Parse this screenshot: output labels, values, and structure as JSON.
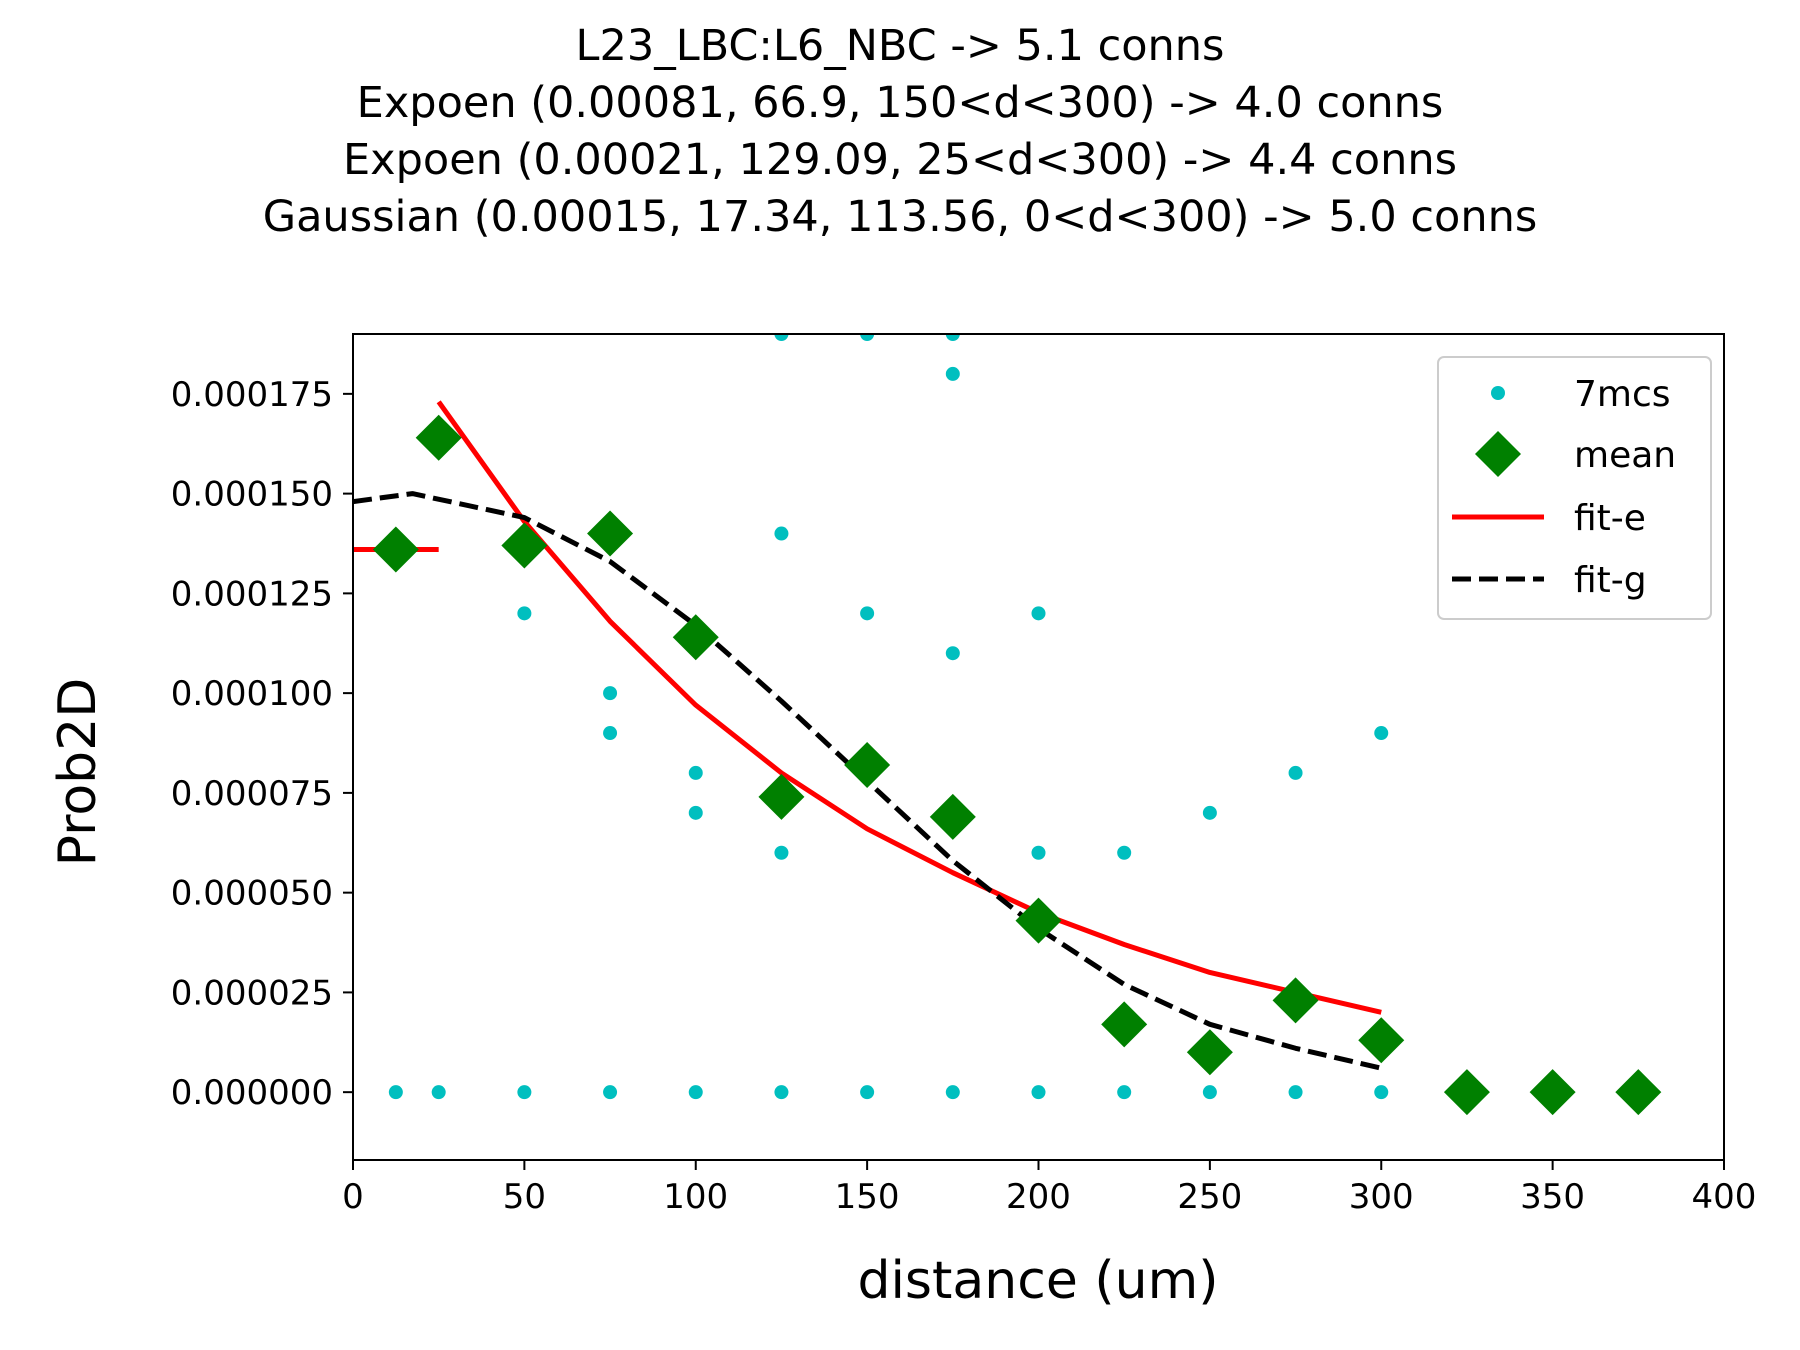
{
  "chart_data": {
    "type": "scatter",
    "title_lines": [
      "L23_LBC:L6_NBC -> 5.1 conns",
      "Expoen (0.00081, 66.9, 150<d<300) -> 4.0 conns",
      "Expoen (0.00021, 129.09, 25<d<300) -> 4.4 conns",
      "Gaussian (0.00015, 17.34, 113.56, 0<d<300) -> 5.0 conns"
    ],
    "xlabel": "distance (um)",
    "ylabel": "Prob2D",
    "xlim": [
      0,
      400
    ],
    "ylim": [
      -1.7e-05,
      0.00019
    ],
    "x_ticks": [
      0,
      50,
      100,
      150,
      200,
      250,
      300,
      350,
      400
    ],
    "x_tick_labels": [
      "0",
      "50",
      "100",
      "150",
      "200",
      "250",
      "300",
      "350",
      "400"
    ],
    "y_ticks": [
      0,
      2.5e-05,
      5e-05,
      7.5e-05,
      0.0001,
      0.000125,
      0.00015,
      0.000175
    ],
    "y_tick_labels": [
      "0.000000",
      "0.000025",
      "0.000050",
      "0.000075",
      "0.000100",
      "0.000125",
      "0.000150",
      "0.000175"
    ],
    "grid": false,
    "legend_position": "top-right",
    "legend": [
      "7mcs",
      "mean",
      "fit-e",
      "fit-g"
    ],
    "colors": {
      "samples": "#00bfbf",
      "mean": "#008000",
      "fit_e": "#ff0000",
      "fit_g": "#000000"
    },
    "series": [
      {
        "name": "7mcs",
        "kind": "points",
        "x": [
          12.5,
          25,
          50,
          50,
          75,
          75,
          75,
          100,
          100,
          100,
          125,
          125,
          125,
          125,
          150,
          150,
          150,
          175,
          175,
          175,
          175,
          200,
          200,
          200,
          225,
          225,
          250,
          250,
          275,
          275,
          300,
          300
        ],
        "y": [
          0,
          0,
          0,
          0.00012,
          0,
          0.0001,
          9e-05,
          0,
          8e-05,
          7e-05,
          0,
          6e-05,
          0.00014,
          0.00019,
          0,
          0.00012,
          0.00019,
          0,
          0.00011,
          0.00018,
          0.00019,
          0,
          6e-05,
          0.00012,
          0,
          6e-05,
          0,
          7e-05,
          0,
          8e-05,
          0,
          9e-05
        ]
      },
      {
        "name": "mean",
        "kind": "diamonds",
        "x": [
          12.5,
          25,
          50,
          75,
          100,
          125,
          150,
          175,
          200,
          225,
          250,
          275,
          300,
          325,
          350,
          375
        ],
        "y": [
          0.000136,
          0.000164,
          0.000137,
          0.00014,
          0.000114,
          7.4e-05,
          8.2e-05,
          6.9e-05,
          4.3e-05,
          1.7e-05,
          1e-05,
          2.3e-05,
          1.3e-05,
          0,
          0,
          0
        ]
      },
      {
        "name": "fit-e",
        "kind": "line",
        "x": [
          0,
          25,
          25,
          50,
          75,
          100,
          125,
          150,
          175,
          200,
          225,
          250,
          275,
          300
        ],
        "y": [
          0.000136,
          0.000136,
          0.000173,
          0.000143,
          0.000118,
          9.7e-05,
          8e-05,
          6.6e-05,
          5.5e-05,
          4.5e-05,
          3.7e-05,
          3e-05,
          2.5e-05,
          2e-05
        ]
      },
      {
        "name": "fit-g",
        "kind": "dashed-line",
        "x": [
          0,
          17.34,
          50,
          75,
          100,
          125,
          150,
          175,
          200,
          225,
          250,
          275,
          300
        ],
        "y": [
          0.000148,
          0.00015,
          0.000144,
          0.000133,
          0.000117,
          9.8e-05,
          7.8e-05,
          5.8e-05,
          4.1e-05,
          2.7e-05,
          1.7e-05,
          1.1e-05,
          6e-06
        ]
      }
    ]
  }
}
